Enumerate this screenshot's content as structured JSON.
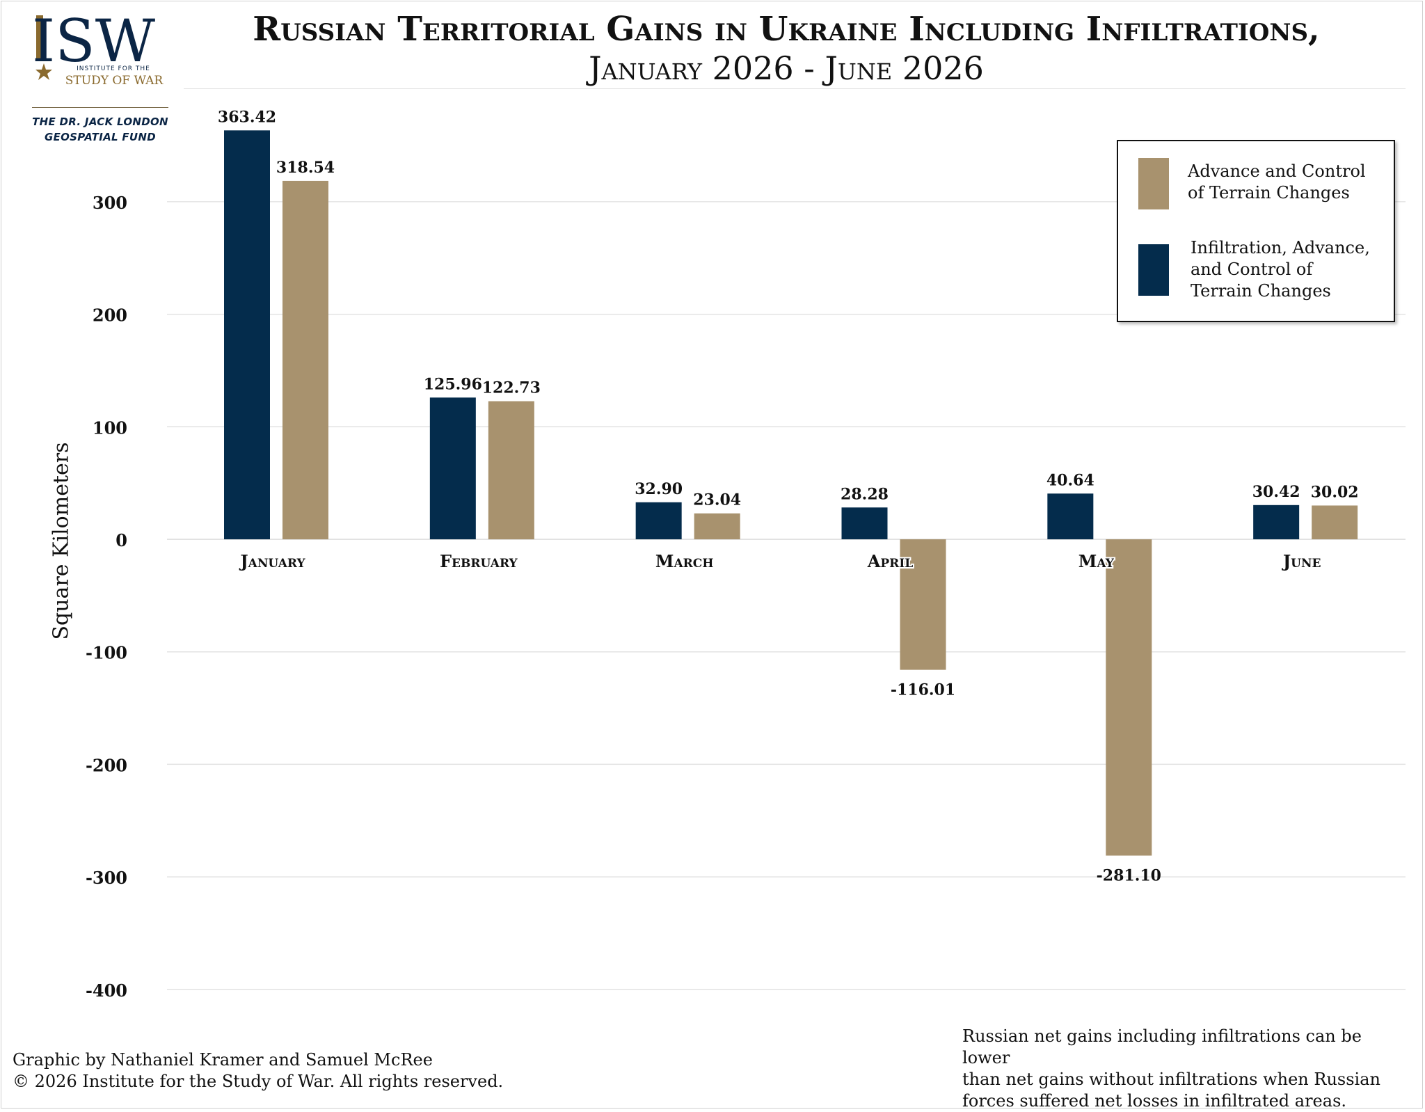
{
  "logo": {
    "mark": "ISW",
    "small_line1": "INSTITUTE FOR THE",
    "small_line2": "STUDY OF WAR",
    "fund_line1": "THE DR. JACK LONDON",
    "fund_line2": "GEOSPATIAL FUND",
    "icon": "star-icon"
  },
  "colors": {
    "navy": "#042c4c",
    "tan": "#a8926e"
  },
  "chart_data": {
    "type": "bar",
    "title": "Russian Territorial Gains in Ukraine Including Infiltrations,",
    "subtitle": "January 2026 - June 2026",
    "xlabel": "",
    "ylabel": "Square Kilometers",
    "ylim": [
      -400,
      363.42
    ],
    "yticks": [
      -400,
      -300,
      -200,
      -100,
      0,
      100,
      200,
      300
    ],
    "ytick_labels": [
      "-400",
      "-300",
      "-200",
      "-100",
      "0",
      "100",
      "200",
      "300"
    ],
    "grid": true,
    "legend_position": "top-right",
    "categories": [
      "January",
      "February",
      "March",
      "April",
      "May",
      "June"
    ],
    "series": [
      {
        "name": "Infiltration, Advance, and Control of Terrain Changes",
        "color": "#042c4c",
        "values": [
          363.42,
          125.96,
          32.9,
          28.28,
          40.64,
          30.42
        ],
        "labels": [
          "363.42",
          "125.96",
          "32.90",
          "28.28",
          "40.64",
          "30.42"
        ]
      },
      {
        "name": "Advance and Control of Terrain Changes",
        "color": "#a8926e",
        "values": [
          318.54,
          122.73,
          23.04,
          -116.01,
          -281.1,
          30.02
        ],
        "labels": [
          "318.54",
          "122.73",
          "23.04",
          "-116.01",
          "-281.10",
          "30.02"
        ]
      }
    ]
  },
  "legend": {
    "tan_line1": "Advance and Control",
    "tan_line2": "of Terrain Changes",
    "navy_line1": "Infiltration, Advance,",
    "navy_line2": "and Control of",
    "navy_line3": "Terrain Changes"
  },
  "footer": {
    "credit_line1": "Graphic by Nathaniel Kramer and Samuel McRee",
    "credit_line2": "© 2026 Institute for the Study of War. All rights reserved.",
    "note_line1": "Russian net gains including infiltrations can be lower",
    "note_line2": "than net gains without infiltrations when Russian",
    "note_line3": "forces suffered net losses in infiltrated areas."
  }
}
